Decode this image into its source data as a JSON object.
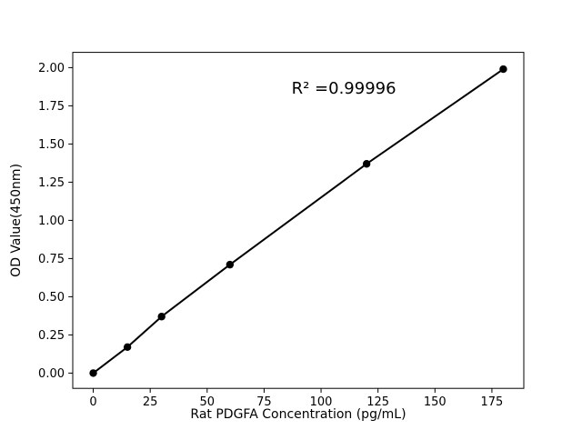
{
  "chart_data": {
    "type": "line",
    "title": "",
    "xlabel": "Rat PDGFA Concentration (pg/mL)",
    "ylabel": "OD Value(450nm)",
    "x": [
      0,
      15,
      30,
      60,
      120,
      180
    ],
    "y": [
      0.0,
      0.17,
      0.37,
      0.71,
      1.37,
      1.99
    ],
    "xlim": [
      -9,
      189
    ],
    "ylim": [
      -0.1,
      2.1
    ],
    "xticks": [
      0,
      25,
      50,
      75,
      100,
      125,
      150,
      175
    ],
    "xtick_labels": [
      "0",
      "25",
      "50",
      "75",
      "100",
      "125",
      "150",
      "175"
    ],
    "yticks": [
      0.0,
      0.25,
      0.5,
      0.75,
      1.0,
      1.25,
      1.5,
      1.75,
      2.0
    ],
    "ytick_labels": [
      "0.00",
      "0.25",
      "0.50",
      "0.75",
      "1.00",
      "1.25",
      "1.50",
      "1.75",
      "2.00"
    ],
    "annotation": {
      "text": "R² =0.99996",
      "x": 110,
      "y": 1.83
    },
    "line_color": "#000000",
    "marker_color": "#000000",
    "grid": false,
    "legend": null
  }
}
